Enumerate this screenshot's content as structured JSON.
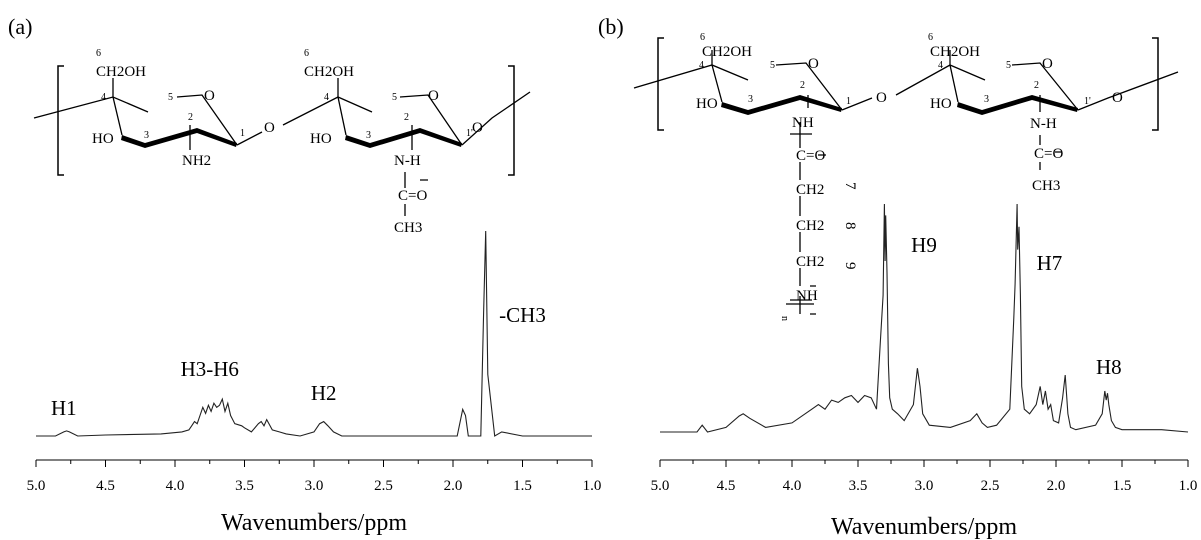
{
  "panels": [
    {
      "label": "(a)",
      "xlabel": "Wavenumbers/ppm"
    },
    {
      "label": "(b)",
      "xlabel": "Wavenumbers/ppm"
    }
  ],
  "chart_data": [
    {
      "type": "line",
      "title": "",
      "xlabel": "Wavenumbers/ppm",
      "ylabel": "",
      "xlim": [
        5.0,
        1.0
      ],
      "x_reversed": true,
      "xticks": [
        "5.0",
        "4.5",
        "4.0",
        "3.5",
        "3.0",
        "2.5",
        "2.0",
        "1.5",
        "1.0"
      ],
      "series": [
        {
          "x": [
            5.0,
            4.86,
            4.8,
            4.78,
            4.76,
            4.7,
            4.5,
            4.1,
            3.95,
            3.9,
            3.88,
            3.86,
            3.84,
            3.82,
            3.8,
            3.78,
            3.76,
            3.74,
            3.72,
            3.7,
            3.68,
            3.66,
            3.64,
            3.62,
            3.6,
            3.57,
            3.52,
            3.5,
            3.45,
            3.4,
            3.38,
            3.36,
            3.34,
            3.3,
            3.25,
            3.2,
            3.1,
            3.0,
            2.96,
            2.93,
            2.9,
            2.86,
            2.8,
            2.5,
            2.2,
            1.97,
            1.93,
            1.91,
            1.89,
            1.85,
            1.8,
            1.78,
            1.765,
            1.75,
            1.7,
            1.65,
            1.5,
            1.0
          ],
          "y": [
            0.0,
            0.0,
            0.02,
            0.025,
            0.02,
            0.0,
            0.005,
            0.01,
            0.02,
            0.03,
            0.05,
            0.07,
            0.06,
            0.1,
            0.14,
            0.11,
            0.15,
            0.12,
            0.16,
            0.14,
            0.15,
            0.18,
            0.12,
            0.16,
            0.1,
            0.06,
            0.05,
            0.04,
            0.02,
            0.06,
            0.07,
            0.05,
            0.08,
            0.03,
            0.02,
            0.01,
            0.0,
            0.02,
            0.06,
            0.07,
            0.05,
            0.02,
            0.0,
            0.0,
            0.0,
            0.0,
            0.13,
            0.1,
            0.0,
            0.0,
            0.0,
            0.6,
            1.0,
            0.3,
            0.0,
            0.02,
            0.0,
            0.0
          ]
        }
      ],
      "annotations": [
        {
          "text": "H1",
          "x": 4.8
        },
        {
          "text": "H3-H6",
          "x": 3.75
        },
        {
          "text": "H2",
          "x": 2.93
        },
        {
          "text": "-CH3",
          "x": 1.5
        }
      ]
    },
    {
      "type": "line",
      "title": "",
      "xlabel": "Wavenumbers/ppm",
      "ylabel": "",
      "xlim": [
        5.0,
        1.0
      ],
      "x_reversed": true,
      "xticks": [
        "5.0",
        "4.5",
        "4.0",
        "3.5",
        "3.0",
        "2.5",
        "2.0",
        "1.5",
        "1.0"
      ],
      "series": [
        {
          "x": [
            5.0,
            4.72,
            4.68,
            4.64,
            4.5,
            4.4,
            4.37,
            4.32,
            4.2,
            4.0,
            3.85,
            3.8,
            3.75,
            3.7,
            3.65,
            3.6,
            3.55,
            3.5,
            3.45,
            3.4,
            3.36,
            3.33,
            3.31,
            3.3,
            3.295,
            3.29,
            3.28,
            3.27,
            3.26,
            3.24,
            3.2,
            3.15,
            3.08,
            3.05,
            3.03,
            3.01,
            2.96,
            2.8,
            2.65,
            2.6,
            2.56,
            2.52,
            2.45,
            2.35,
            2.32,
            2.31,
            2.295,
            2.29,
            2.28,
            2.27,
            2.26,
            2.24,
            2.2,
            2.15,
            2.12,
            2.1,
            2.08,
            2.06,
            2.04,
            2.02,
            1.98,
            1.95,
            1.93,
            1.91,
            1.89,
            1.85,
            1.7,
            1.65,
            1.63,
            1.62,
            1.61,
            1.6,
            1.58,
            1.55,
            1.5,
            1.2,
            1.0
          ],
          "y": [
            0.0,
            0.0,
            0.03,
            0.0,
            0.02,
            0.07,
            0.08,
            0.06,
            0.02,
            0.04,
            0.1,
            0.12,
            0.1,
            0.14,
            0.13,
            0.15,
            0.16,
            0.13,
            0.16,
            0.15,
            0.1,
            0.4,
            0.6,
            1.0,
            0.75,
            0.95,
            0.7,
            0.3,
            0.15,
            0.1,
            0.08,
            0.05,
            0.12,
            0.28,
            0.2,
            0.08,
            0.03,
            0.02,
            0.05,
            0.08,
            0.04,
            0.02,
            0.03,
            0.1,
            0.5,
            0.65,
            1.0,
            0.8,
            0.9,
            0.6,
            0.2,
            0.1,
            0.08,
            0.12,
            0.2,
            0.12,
            0.18,
            0.1,
            0.12,
            0.05,
            0.04,
            0.15,
            0.25,
            0.08,
            0.02,
            0.01,
            0.03,
            0.08,
            0.18,
            0.14,
            0.17,
            0.12,
            0.05,
            0.02,
            0.01,
            0.01,
            0.0
          ]
        }
      ],
      "annotations": [
        {
          "text": "H9",
          "x": 3.0
        },
        {
          "text": "H7",
          "x": 2.05
        },
        {
          "text": "H8",
          "x": 1.6
        }
      ]
    }
  ],
  "structure_a": {
    "labels": [
      "6",
      "CH2OH",
      "4",
      "5",
      "O",
      "HO",
      "3",
      "2",
      "1",
      "NH2",
      "O",
      "6",
      "CH2OH",
      "4",
      "5",
      "O",
      "1'",
      "O",
      "HO",
      "3",
      "2",
      "N-H",
      "C=O",
      "CH3"
    ]
  },
  "structure_b": {
    "labels": [
      "6",
      "CH2OH",
      "4",
      "5",
      "O",
      "HO",
      "3",
      "2",
      "1",
      "NH",
      "O",
      "6",
      "CH2OH",
      "4",
      "5",
      "O",
      "1'",
      "O",
      "HO",
      "3",
      "2",
      "N-H",
      "C=O",
      "CH3"
    ],
    "side_chain": [
      "C=O",
      "CH2",
      "CH2",
      "CH2",
      "NH",
      "n"
    ],
    "side_chain_numbers": [
      "7",
      "8",
      "9"
    ]
  }
}
